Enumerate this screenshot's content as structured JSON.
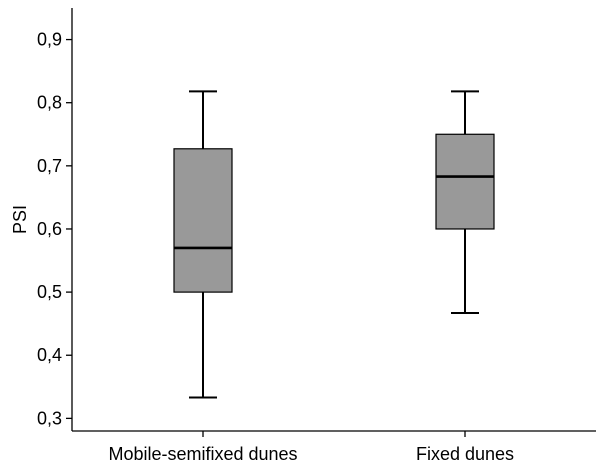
{
  "chart_data": {
    "type": "box",
    "title": "",
    "xlabel": "",
    "ylabel": "PSI",
    "ylim": [
      0.28,
      0.95
    ],
    "yticks": [
      0.3,
      0.4,
      0.5,
      0.6,
      0.7,
      0.8,
      0.9
    ],
    "ytick_labels": [
      "0,3",
      "0,4",
      "0,5",
      "0,6",
      "0,7",
      "0,8",
      "0,9"
    ],
    "grid": false,
    "categories": [
      "Mobile-semifixed dunes",
      "Fixed dunes"
    ],
    "boxes": [
      {
        "category": "Mobile-semifixed dunes",
        "whisker_low": 0.333,
        "q1": 0.5,
        "median": 0.57,
        "q3": 0.727,
        "whisker_high": 0.818
      },
      {
        "category": "Fixed dunes",
        "whisker_low": 0.467,
        "q1": 0.6,
        "median": 0.683,
        "q3": 0.75,
        "whisker_high": 0.818
      }
    ],
    "colors": {
      "box_fill": "#999999",
      "line": "#000000",
      "axis": "#000000"
    }
  }
}
